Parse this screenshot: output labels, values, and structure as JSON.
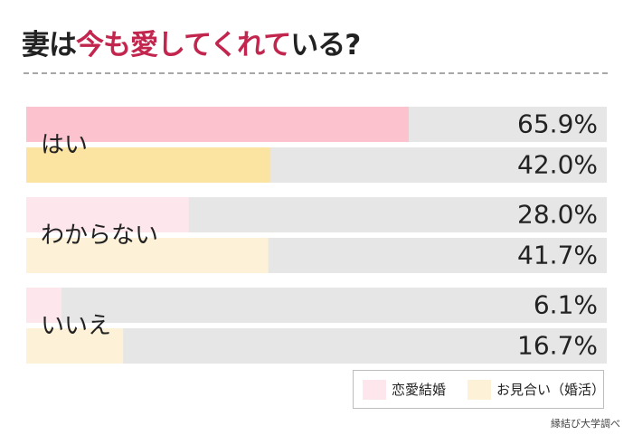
{
  "title": {
    "prefix": "妻は",
    "highlight": "今も愛してくれて",
    "suffix": "いる?"
  },
  "chart_data": {
    "type": "bar",
    "orientation": "horizontal",
    "categories": [
      "はい",
      "わからない",
      "いいえ"
    ],
    "series": [
      {
        "name": "恋愛結婚",
        "values": [
          65.9,
          28.0,
          6.1
        ],
        "labels": [
          "65.9%",
          "28.0%",
          "6.1%"
        ]
      },
      {
        "name": "お見合い（婚活）",
        "values": [
          42.0,
          41.7,
          16.7
        ],
        "labels": [
          "42.0%",
          "41.7%",
          "16.7%"
        ]
      }
    ],
    "xlim": [
      0,
      100
    ],
    "legend_position": "bottom-right"
  },
  "colors": {
    "track": "#e6e6e6",
    "accent": "#c2264e",
    "series_highlight": [
      "#fcc3cf",
      "#fbe3a2"
    ],
    "series_muted": [
      "#fde7ec",
      "#fdf1d8"
    ]
  },
  "source": "縁結び大学調べ"
}
